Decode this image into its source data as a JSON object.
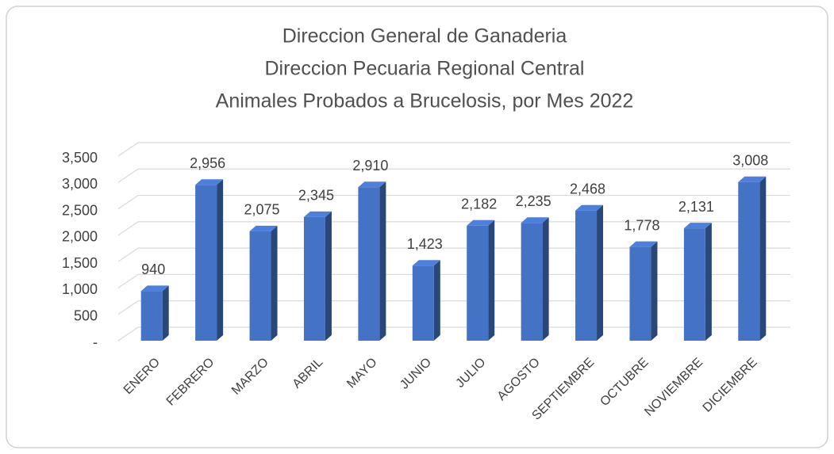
{
  "chart_data": {
    "type": "bar3d",
    "title": [
      "Direccion General de Ganaderia",
      "Direccion Pecuaria Regional Central",
      "Animales Probados a Brucelosis, por Mes 2022"
    ],
    "categories": [
      "ENERO",
      "FEBRERO",
      "MARZO",
      "ABRIL",
      "MAYO",
      "JUNIO",
      "JULIO",
      "AGOSTO",
      "SEPTIEMBRE",
      "OCTUBRE",
      "NOVIEMBRE",
      "DICIEMBRE"
    ],
    "values": [
      940,
      2956,
      2075,
      2345,
      2910,
      1423,
      2182,
      2235,
      2468,
      1778,
      2131,
      3008
    ],
    "value_labels": [
      "940",
      "2,956",
      "2,075",
      "2,345",
      "2,910",
      "1,423",
      "2,182",
      "2,235",
      "2,468",
      "1,778",
      "2,131",
      "3,008"
    ],
    "color": "#4472c4",
    "ylim": [
      0,
      3500
    ],
    "yticks": [
      {
        "value": 0,
        "label": "-"
      },
      500,
      {
        "value": 1000,
        "label": "1,000"
      },
      {
        "value": 1500,
        "label": "1,500"
      },
      {
        "value": 2000,
        "label": "2,000"
      },
      {
        "value": 2500,
        "label": "2,500"
      },
      {
        "value": 3000,
        "label": "3,000"
      },
      {
        "value": 3500,
        "label": "3,500"
      }
    ],
    "grid": true
  }
}
